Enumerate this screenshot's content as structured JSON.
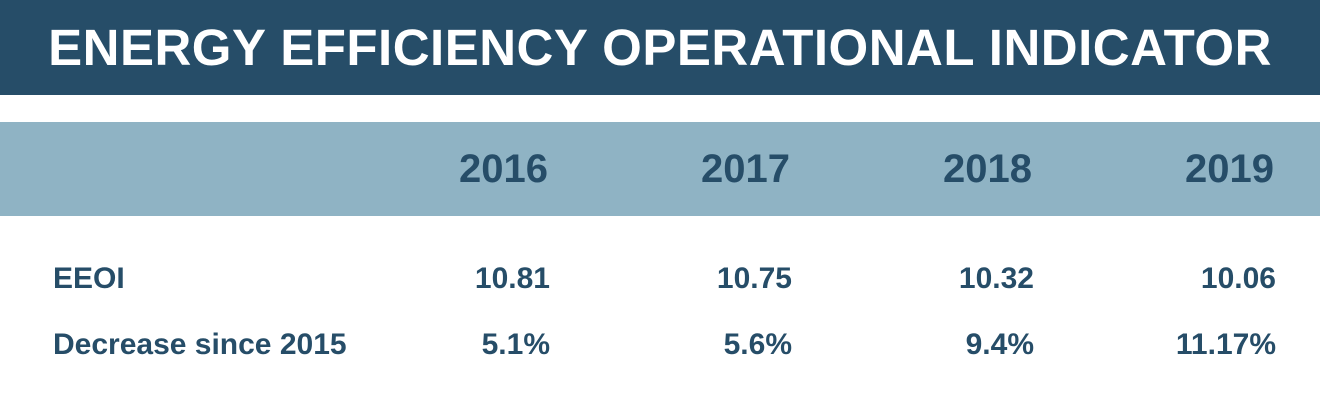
{
  "title": "ENERGY EFFICIENCY OPERATIONAL INDICATOR",
  "table": {
    "years": [
      "2016",
      "2017",
      "2018",
      "2019"
    ],
    "rows": [
      {
        "label": "EEOI",
        "values": [
          "10.81",
          "10.75",
          "10.32",
          "10.06"
        ]
      },
      {
        "label": "Decrease since 2015",
        "values": [
          "5.1%",
          "5.6%",
          "9.4%",
          "11.17%"
        ]
      }
    ]
  },
  "colors": {
    "title_bg": "#264d68",
    "header_band": "#8fb3c4",
    "text": "#264d68"
  }
}
